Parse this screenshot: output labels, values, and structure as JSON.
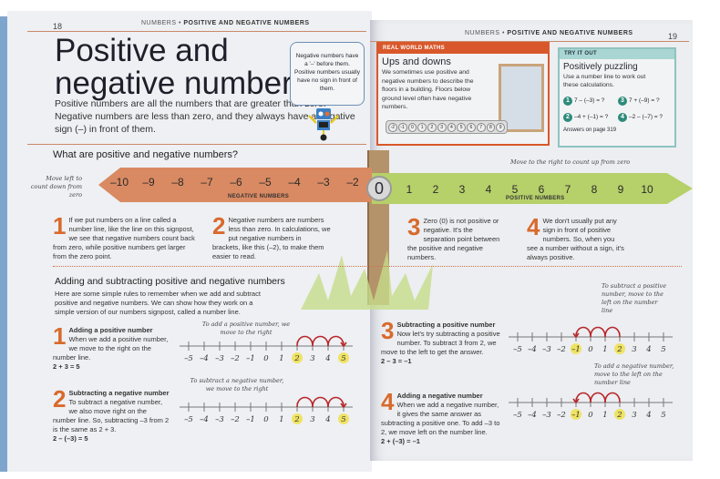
{
  "left_page": {
    "page_number": "18",
    "header": {
      "section": "NUMBERS",
      "bullet": "•",
      "topic": "POSITIVE AND NEGATIVE NUMBERS"
    },
    "title_line1": "Positive and",
    "title_line2": "negative numbers",
    "intro": "Positive numbers are all the numbers that are greater than zero. Negative numbers are less than zero, and they always have a negative sign (–) in front of them.",
    "callout": "Negative numbers have a '–' before them. Positive numbers usually have no sign in front of them.",
    "subheading": "What are positive and negative numbers?",
    "signpost": {
      "left_note": "Move left to count down from zero",
      "right_note": "Move to the right to count up from zero",
      "negative_ticks": [
        "–10",
        "–9",
        "–8",
        "–7",
        "–6",
        "–5",
        "–4",
        "–3",
        "–2"
      ],
      "negative_label": "NEGATIVE NUMBERS",
      "zero": "0",
      "positive_ticks": [
        "1",
        "2",
        "3",
        "4",
        "5",
        "6",
        "7",
        "8",
        "9",
        "10"
      ],
      "positive_label": "POSITIVE NUMBERS",
      "colors": {
        "negative": "#d98a62",
        "positive": "#b6d06a"
      }
    },
    "points": [
      {
        "n": "1",
        "text": "If we put numbers on a line called a number line, like the line on this signpost, we see that negative numbers count back from zero, while positive numbers get larger from the zero point."
      },
      {
        "n": "2",
        "text": "Negative numbers are numbers less than zero. In calculations, we put negative numbers in brackets, like this (–2), to make them easier to read."
      }
    ],
    "section2": {
      "heading": "Adding and subtracting positive and negative numbers",
      "intro": "Here are some simple rules to remember when we add and subtract positive and negative numbers. We can show how they work on a simple version of our numbers signpost, called a number line."
    },
    "rules": [
      {
        "n": "1",
        "title": "Adding a positive number",
        "text": "When we add a positive number, we move to the right on the number line.",
        "equation": "2 + 3 = 5",
        "note": "To add a positive number, we move to the right",
        "start": 2,
        "end": 5
      },
      {
        "n": "2",
        "title": "Subtracting a negative number",
        "text": "To subtract a negative number, we also move right on the number line. So, subtracting –3 from 2 is the same as 2 + 3.",
        "equation": "2 – (–3) = 5",
        "note": "To subtract a negative number, we move to the right",
        "start": 2,
        "end": 5
      }
    ]
  },
  "right_page": {
    "page_number": "19",
    "header": {
      "section": "NUMBERS",
      "bullet": "•",
      "topic": "POSITIVE AND NEGATIVE NUMBERS"
    },
    "real_world": {
      "tag": "REAL WORLD MATHS",
      "title": "Ups and downs",
      "text": "We sometimes use positive and negative numbers to describe the floors in a building. Floors below ground level often have negative numbers.",
      "floors": [
        "-2",
        "-1",
        "0",
        "1",
        "2",
        "3",
        "4",
        "5",
        "6",
        "7",
        "8",
        "9"
      ]
    },
    "try_it": {
      "tag": "TRY IT OUT",
      "title": "Positively puzzling",
      "text": "Use a number line to work out these calculations.",
      "questions": [
        {
          "n": "1",
          "q": "7 – (–3) = ?"
        },
        {
          "n": "3",
          "q": "7 + (–9) = ?"
        },
        {
          "n": "2",
          "q": "–4 + (–1) = ?"
        },
        {
          "n": "4",
          "q": "–2 – (–7) = ?"
        }
      ],
      "answers": "Answers on page 319"
    },
    "points": [
      {
        "n": "3",
        "text": "Zero (0) is not positive or negative. It's the separation point between the positive and negative numbers."
      },
      {
        "n": "4",
        "text": "We don't usually put any sign in front of positive numbers. So, when you see a number without a sign, it's always positive."
      }
    ],
    "rules": [
      {
        "n": "3",
        "title": "Subtracting a positive number",
        "text": "Now let's try subtracting a positive number. To subtract 3 from 2, we move to the left to get the answer.",
        "equation": "2 – 3 = –1",
        "note": "To subtract a positive number, move to the left on the number line",
        "start": 2,
        "end": -1
      },
      {
        "n": "4",
        "title": "Adding a negative number",
        "text": "When we add a negative number, it gives the same answer as subtracting a positive one. To add –3 to 2, we move left on the number line.",
        "equation": "2 + (–3) = –1",
        "note": "To add a negative number, move to the left on the number line",
        "start": 2,
        "end": -1
      }
    ]
  },
  "number_line_labels": [
    "–5",
    "–4",
    "–3",
    "–2",
    "–1",
    "0",
    "1",
    "2",
    "3",
    "4",
    "5"
  ]
}
